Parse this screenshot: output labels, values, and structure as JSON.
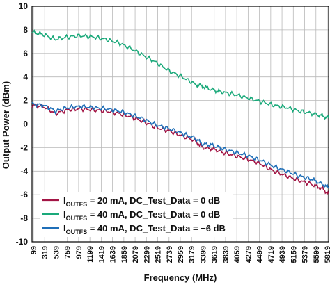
{
  "chart_data": {
    "type": "line",
    "xlabel": "Frequency (MHz)",
    "ylabel": "Output Power (dBm)",
    "ylim": [
      -10,
      10
    ],
    "yticks": [
      10,
      8,
      6,
      4,
      2,
      0,
      -2,
      -4,
      -6,
      -8,
      -10
    ],
    "xlim": [
      99,
      5929
    ],
    "xticks": [
      "99",
      "319",
      "539",
      "759",
      "979",
      "1199",
      "1419",
      "1639",
      "1859",
      "2079",
      "2299",
      "2519",
      "2739",
      "2959",
      "3179",
      "3399",
      "3619",
      "3839",
      "4059",
      "4279",
      "4499",
      "4719",
      "4939",
      "5159",
      "5379",
      "5599",
      "5819"
    ],
    "grid": true,
    "legend_position": "bottom-left",
    "series": [
      {
        "name_main": "I",
        "name_sub": "OUTFS",
        "name_rest": " = 20 mA, DC_Test_Data = 0 dB",
        "color": "#a31545",
        "x": [
          99,
          320,
          560,
          800,
          1050,
          1300,
          1550,
          1800,
          2050,
          2300,
          2550,
          2800,
          3050,
          3300,
          3450,
          3650,
          3850,
          4100,
          4350,
          4600,
          4850,
          5100,
          5350,
          5600,
          5800,
          5929
        ],
        "y": [
          1.6,
          1.5,
          0.9,
          1.2,
          1.3,
          1.2,
          1.1,
          0.9,
          0.6,
          0.2,
          -0.3,
          -0.6,
          -1.0,
          -1.4,
          -2.0,
          -2.1,
          -2.4,
          -2.7,
          -3.0,
          -3.4,
          -4.0,
          -4.4,
          -4.8,
          -5.1,
          -5.5,
          -5.9
        ]
      },
      {
        "name_main": "I",
        "name_sub": "OUTFS",
        "name_rest": " = 40 mA, DC_Test_Data = 0 dB",
        "color": "#1aa97a",
        "x": [
          99,
          320,
          560,
          800,
          1050,
          1300,
          1550,
          1800,
          2050,
          2300,
          2550,
          2800,
          3050,
          3300,
          3450,
          3650,
          3850,
          4100,
          4350,
          4600,
          4850,
          5100,
          5350,
          5600,
          5800,
          5929
        ],
        "y": [
          7.8,
          7.6,
          7.2,
          7.4,
          7.5,
          7.4,
          7.2,
          6.9,
          6.4,
          5.8,
          5.2,
          4.5,
          4.0,
          3.4,
          3.2,
          2.9,
          2.7,
          2.5,
          2.2,
          1.9,
          1.6,
          1.4,
          1.1,
          0.9,
          0.7,
          0.5
        ]
      },
      {
        "name_main": "I",
        "name_sub": "OUTFS",
        "name_rest": " = 40 mA, DC_Test_Data = −6 dB",
        "color": "#1f6fb8",
        "x": [
          99,
          320,
          560,
          800,
          1050,
          1300,
          1550,
          1800,
          2050,
          2300,
          2550,
          2800,
          3050,
          3300,
          3450,
          3650,
          3850,
          4100,
          4350,
          4600,
          4850,
          5100,
          5350,
          5600,
          5800,
          5929
        ],
        "y": [
          1.7,
          1.6,
          1.1,
          1.4,
          1.5,
          1.4,
          1.3,
          1.1,
          0.8,
          0.4,
          -0.1,
          -0.4,
          -0.8,
          -1.2,
          -1.7,
          -1.8,
          -2.1,
          -2.4,
          -2.7,
          -3.1,
          -3.6,
          -4.0,
          -4.4,
          -4.7,
          -5.1,
          -5.4
        ]
      }
    ]
  }
}
